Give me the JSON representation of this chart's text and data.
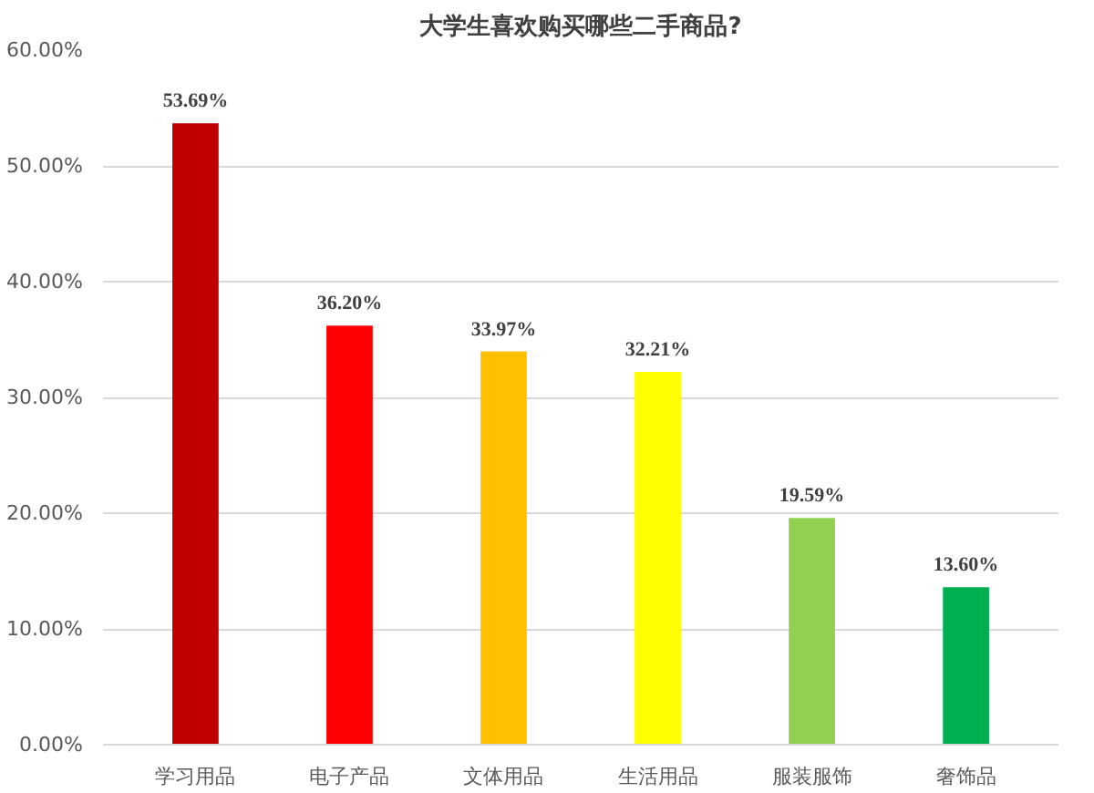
{
  "chart_data": {
    "type": "bar",
    "title": "大学生喜欢购买哪些二手商品?",
    "categories": [
      "学习用品",
      "电子产品",
      "文体用品",
      "生活用品",
      "服装服饰",
      "奢饰品"
    ],
    "values": [
      53.69,
      36.2,
      33.97,
      32.21,
      19.59,
      13.6
    ],
    "colors": [
      "#c00000",
      "#ff0000",
      "#ffc000",
      "#ffff00",
      "#92d050",
      "#00b050"
    ],
    "value_labels": [
      "53.69%",
      "36.20%",
      "33.97%",
      "32.21%",
      "19.59%",
      "13.60%"
    ],
    "ylim": [
      0,
      60
    ],
    "yticks": [
      {
        "value": 0,
        "label": "0.00%"
      },
      {
        "value": 10,
        "label": "10.00%"
      },
      {
        "value": 20,
        "label": "20.00%"
      },
      {
        "value": 30,
        "label": "30.00%"
      },
      {
        "value": 40,
        "label": "40.00%"
      },
      {
        "value": 50,
        "label": "50.00%"
      },
      {
        "value": 60,
        "label": "60.00%"
      }
    ],
    "grid": "y"
  }
}
